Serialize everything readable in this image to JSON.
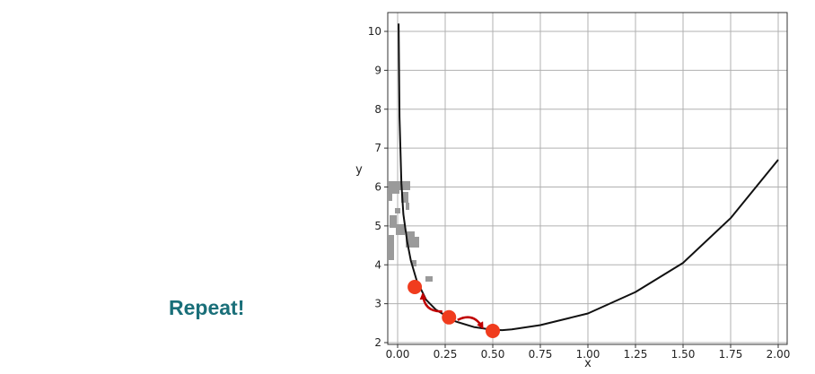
{
  "side_label": "Repeat!",
  "chart_data": {
    "type": "line",
    "xlabel": "x",
    "ylabel": "y",
    "xlim": [
      0.0,
      2.0
    ],
    "ylim": [
      2,
      10.5
    ],
    "xticks": [
      0.0,
      0.25,
      0.5,
      0.75,
      1.0,
      1.25,
      1.5,
      1.75,
      2.0
    ],
    "xtick_labels": [
      "0.00",
      "0.25",
      "0.50",
      "0.75",
      "1.00",
      "1.25",
      "1.50",
      "1.75",
      "2.00"
    ],
    "yticks": [
      2,
      3,
      4,
      5,
      6,
      7,
      8,
      9,
      10
    ],
    "yticks_labels": [
      "2",
      "3",
      "4",
      "5",
      "6",
      "7",
      "8",
      "9",
      "10"
    ],
    "grid": true,
    "series": [
      {
        "color": "#111111",
        "x": [
          0.005,
          0.01,
          0.02,
          0.03,
          0.05,
          0.07,
          0.1,
          0.15,
          0.2,
          0.25,
          0.3,
          0.4,
          0.5,
          0.55,
          0.6,
          0.75,
          1.0,
          1.25,
          1.5,
          1.75,
          2.0
        ],
        "y": [
          10.2,
          7.8,
          6.1,
          5.3,
          4.6,
          4.1,
          3.6,
          3.1,
          2.85,
          2.7,
          2.55,
          2.4,
          2.33,
          2.32,
          2.34,
          2.45,
          2.75,
          3.3,
          4.05,
          5.2,
          6.7
        ]
      }
    ],
    "points": [
      {
        "x": 0.09,
        "y": 3.43,
        "color": "#f03c1e"
      },
      {
        "x": 0.27,
        "y": 2.65,
        "color": "#f03c1e"
      },
      {
        "x": 0.5,
        "y": 2.3,
        "color": "#f03c1e"
      }
    ],
    "arrows": [
      {
        "from": 1,
        "to": 0,
        "color": "#c00000"
      },
      {
        "from": 1,
        "to": 2,
        "color": "#c00000"
      }
    ]
  }
}
